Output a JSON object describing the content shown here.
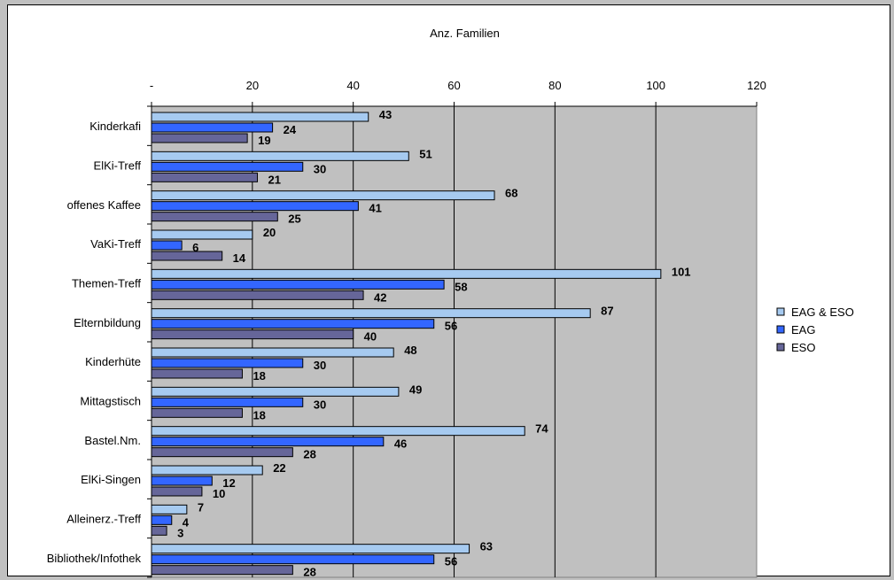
{
  "chart_data": {
    "type": "bar",
    "orientation": "horizontal",
    "title": "Anz. Familien",
    "xlim": [
      0,
      120
    ],
    "x_ticks": [
      "-",
      "20",
      "40",
      "60",
      "80",
      "100",
      "120"
    ],
    "categories": [
      "Kinderkafi",
      "ElKi-Treff",
      "offenes Kaffee",
      "VaKi-Treff",
      "Themen-Treff",
      "Elternbildung",
      "Kinderhüte",
      "Mittagstisch",
      "Bastel.Nm.",
      "ElKi-Singen",
      "Alleinerz.-Treff",
      "Bibliothek/Infothek"
    ],
    "series": [
      {
        "name": "EAG & ESO",
        "color": "#a6caf0",
        "values": [
          43,
          51,
          68,
          20,
          101,
          87,
          48,
          49,
          74,
          22,
          7,
          63
        ]
      },
      {
        "name": "EAG",
        "color": "#3366ff",
        "values": [
          24,
          30,
          41,
          6,
          58,
          56,
          30,
          30,
          46,
          12,
          4,
          56
        ]
      },
      {
        "name": "ESO",
        "color": "#666699",
        "values": [
          19,
          21,
          25,
          14,
          42,
          40,
          18,
          18,
          28,
          10,
          3,
          28
        ]
      }
    ],
    "plot_background": "#c0c0c0",
    "grid": true,
    "legend_position": "right"
  }
}
